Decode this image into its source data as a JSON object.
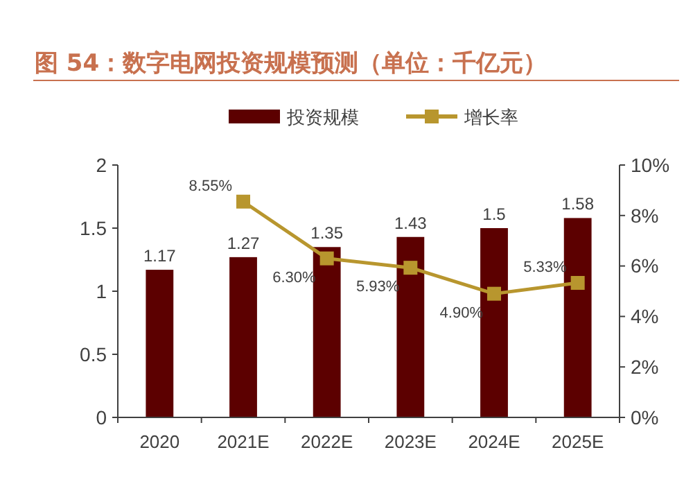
{
  "chart_data": {
    "type": "bar",
    "title": "图 54：数字电网投资规模预测（单位：千亿元）",
    "categories": [
      "2020",
      "2021E",
      "2022E",
      "2023E",
      "2024E",
      "2025E"
    ],
    "series": [
      {
        "name": "投资规模",
        "color": "#5c0000",
        "values": [
          1.17,
          1.27,
          1.35,
          1.43,
          1.5,
          1.58
        ],
        "value_labels": [
          "1.17",
          "1.27",
          "1.35",
          "1.43",
          "1.5",
          "1.58"
        ]
      },
      {
        "name": "增长率",
        "type": "line",
        "axis": "y2",
        "color": "#b8962e",
        "marker": "square",
        "values": [
          null,
          8.55,
          6.3,
          5.93,
          4.9,
          5.33
        ],
        "value_labels": [
          null,
          "8.55%",
          "6.30%",
          "5.93%",
          "4.90%",
          "5.33%"
        ]
      }
    ],
    "ylim": [
      0,
      2
    ],
    "yticks": [
      0,
      0.5,
      1,
      1.5,
      2
    ],
    "y2lim": [
      0,
      10
    ],
    "y2ticks": [
      {
        "value": 0,
        "label": "0%"
      },
      {
        "value": 2,
        "label": "2%"
      },
      {
        "value": 4,
        "label": "4%"
      },
      {
        "value": 6,
        "label": "6%"
      },
      {
        "value": 8,
        "label": "8%"
      },
      {
        "value": 10,
        "label": "10%"
      }
    ],
    "grid": false,
    "legend": "top"
  }
}
